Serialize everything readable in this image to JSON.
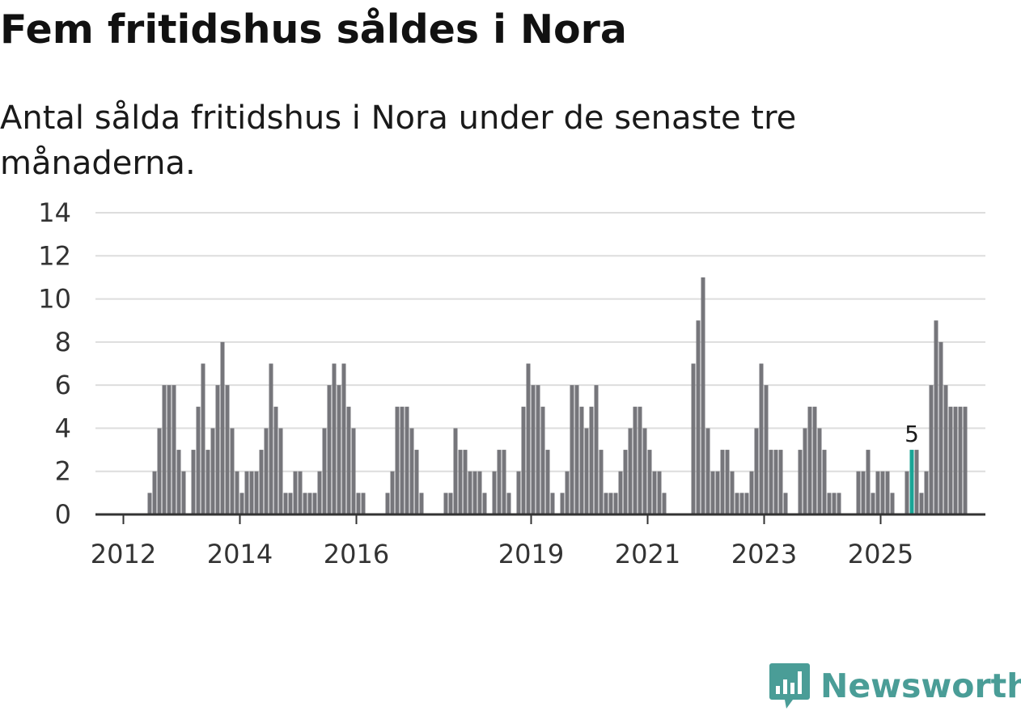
{
  "title": "Fem fritidshus såldes i Nora",
  "subtitle": "Antal sålda fritidshus i Nora under de senaste tre månaderna.",
  "brand": {
    "name": "Newsworthy",
    "color": "#4a9d97"
  },
  "colors": {
    "bar": "#76767b",
    "highlight": "#1aa596",
    "grid": "#dddddd",
    "axis": "#333333"
  },
  "chart_data": {
    "type": "bar",
    "title": "Fem fritidshus såldes i Nora",
    "subtitle": "Antal sålda fritidshus i Nora under de senaste tre månaderna.",
    "xlabel": "",
    "ylabel": "",
    "ylim": [
      0,
      14
    ],
    "yticks": [
      0,
      2,
      4,
      6,
      8,
      10,
      12,
      14
    ],
    "grid": true,
    "start": {
      "year": 2011,
      "month": 6
    },
    "xticks": [
      {
        "label": "2012",
        "year": 2012
      },
      {
        "label": "2014",
        "year": 2014
      },
      {
        "label": "2016",
        "year": 2016
      },
      {
        "label": "2019",
        "year": 2019
      },
      {
        "label": "2021",
        "year": 2021
      },
      {
        "label": "2023",
        "year": 2023
      },
      {
        "label": "2025",
        "year": 2025
      }
    ],
    "values": [
      0,
      0,
      0,
      0,
      0,
      0,
      0,
      0,
      0,
      0,
      0,
      0,
      1,
      2,
      4,
      6,
      6,
      6,
      3,
      2,
      0,
      3,
      5,
      7,
      3,
      4,
      6,
      8,
      6,
      4,
      2,
      1,
      2,
      2,
      2,
      3,
      4,
      7,
      5,
      4,
      1,
      1,
      2,
      2,
      1,
      1,
      1,
      2,
      4,
      6,
      7,
      6,
      7,
      5,
      4,
      1,
      1,
      0,
      0,
      0,
      0,
      1,
      2,
      5,
      5,
      5,
      4,
      3,
      1,
      0,
      0,
      0,
      0,
      1,
      1,
      4,
      3,
      3,
      2,
      2,
      2,
      1,
      0,
      2,
      3,
      3,
      1,
      0,
      2,
      5,
      7,
      6,
      6,
      5,
      3,
      1,
      0,
      1,
      2,
      6,
      6,
      5,
      4,
      5,
      6,
      3,
      1,
      1,
      1,
      2,
      3,
      4,
      5,
      5,
      4,
      3,
      2,
      2,
      1,
      0,
      0,
      0,
      0,
      0,
      7,
      9,
      11,
      4,
      2,
      2,
      3,
      3,
      2,
      1,
      1,
      1,
      2,
      4,
      7,
      6,
      3,
      3,
      3,
      1,
      0,
      0,
      3,
      4,
      5,
      5,
      4,
      3,
      1,
      1,
      1,
      0,
      0,
      0,
      2,
      2,
      3,
      1,
      2,
      2,
      2,
      1,
      0,
      0,
      2,
      3,
      3,
      1,
      2,
      6,
      9,
      8,
      6,
      5,
      5,
      5,
      5
    ],
    "highlight_index": 169,
    "annotation": {
      "index": 169,
      "text": "5"
    }
  }
}
